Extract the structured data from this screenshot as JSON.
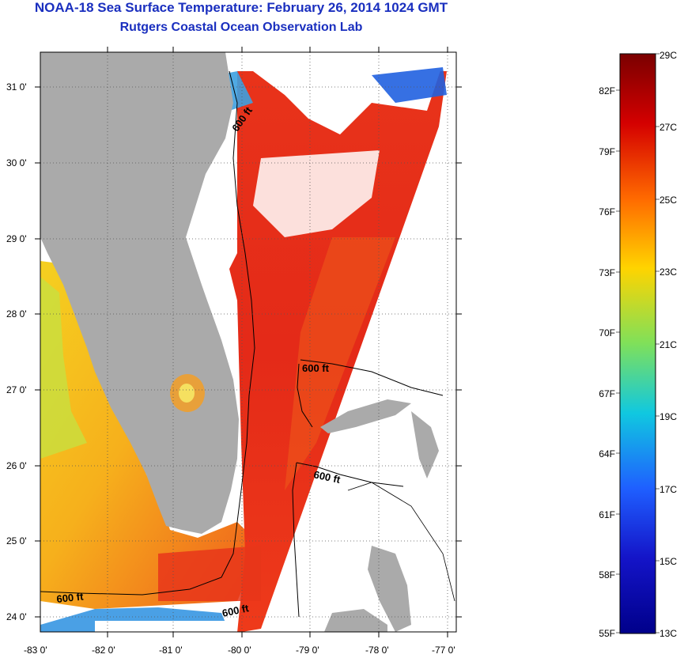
{
  "header": {
    "title": "NOAA-18 Sea Surface Temperature:  February 26, 2014 1024 GMT",
    "subtitle": "Rutgers Coastal Ocean Observation Lab"
  },
  "map": {
    "lat_ticks": [
      "31 0'",
      "30 0'",
      "29 0'",
      "28 0'",
      "27 0'",
      "26 0'",
      "25 0'",
      "24 0'"
    ],
    "lon_ticks": [
      "-83 0'",
      "-82 0'",
      "-81 0'",
      "-80 0'",
      "-79 0'",
      "-78 0'",
      "-77 0'"
    ],
    "contour_label": "600 ft",
    "colors": {
      "land": "#aaaaaa",
      "cloud_nodata": "#ffffff",
      "warm": "#e8231a",
      "cool": "#f2c520"
    }
  },
  "colorbar": {
    "celsius_labels": [
      "29C",
      "27C",
      "25C",
      "23C",
      "21C",
      "19C",
      "17C",
      "15C",
      "13C"
    ],
    "fahrenheit_labels": [
      "82F",
      "79F",
      "76F",
      "73F",
      "70F",
      "67F",
      "64F",
      "61F",
      "58F",
      "55F"
    ],
    "colors": [
      "#7a0000",
      "#d40000",
      "#ff6a00",
      "#ffd400",
      "#7fe05a",
      "#10c8e0",
      "#1f5fff",
      "#1414c8",
      "#00008a"
    ]
  }
}
